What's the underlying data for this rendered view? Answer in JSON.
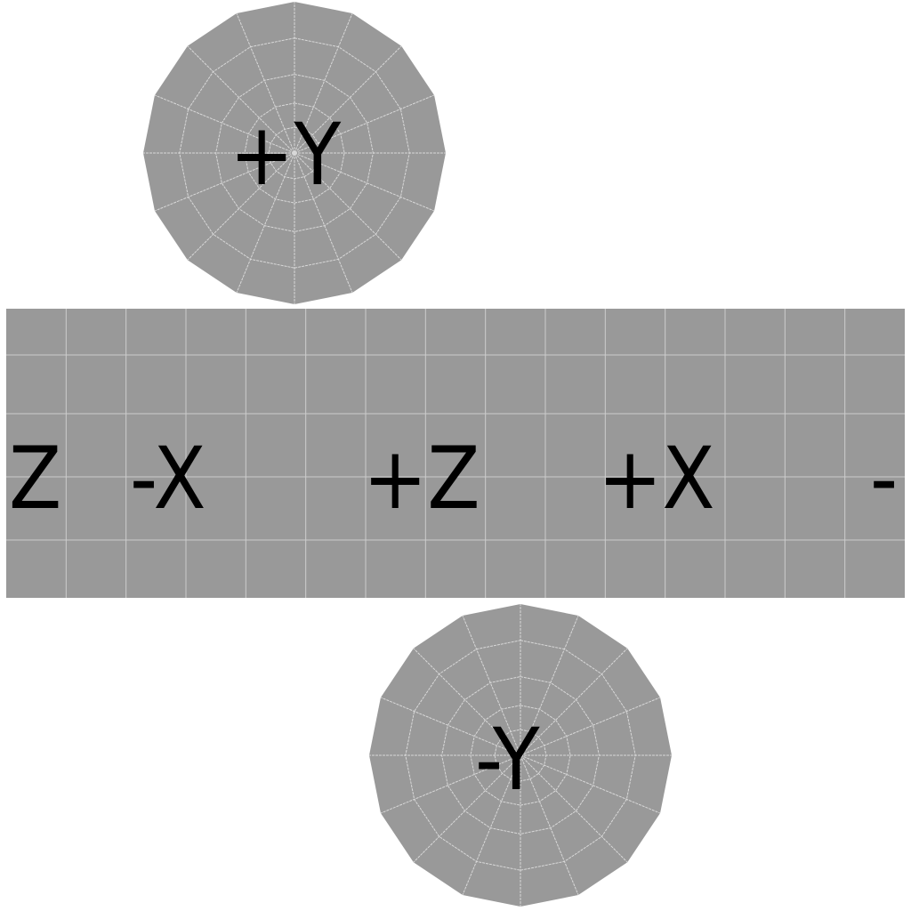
{
  "cap_top": {
    "label": "+Y",
    "segments": 16
  },
  "cap_bottom": {
    "label": "-Y",
    "segments": 16
  },
  "side_strip": {
    "columns": 15,
    "rows": 5,
    "labels": {
      "z_edge": "Z",
      "neg_x": "-X",
      "pos_z": "+Z",
      "pos_x": "+X",
      "neg_edge": "-"
    }
  },
  "colors": {
    "face": "#999999",
    "wire": "#d8d8d8",
    "background": "#ffffff",
    "label": "#000000"
  }
}
